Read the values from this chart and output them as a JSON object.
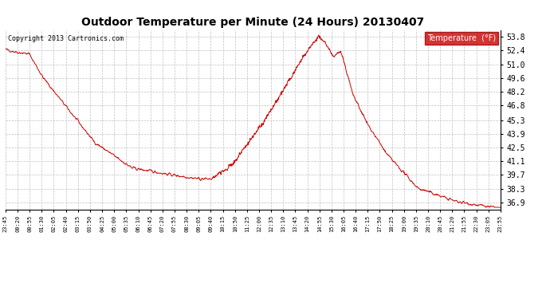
{
  "title": "Outdoor Temperature per Minute (24 Hours) 20130407",
  "copyright_text": "Copyright 2013 Cartronics.com",
  "legend_label": "Temperature  (°F)",
  "line_color": "#cc0000",
  "background_color": "#ffffff",
  "grid_color": "#c0c0c0",
  "ylabel_right_values": [
    36.9,
    38.3,
    39.7,
    41.1,
    42.5,
    43.9,
    45.3,
    46.8,
    48.2,
    49.6,
    51.0,
    52.4,
    53.8
  ],
  "x_tick_labels": [
    "23:45",
    "00:20",
    "00:55",
    "01:30",
    "02:05",
    "02:40",
    "03:15",
    "03:50",
    "04:25",
    "05:00",
    "05:35",
    "06:10",
    "06:45",
    "07:20",
    "07:55",
    "08:30",
    "09:05",
    "09:40",
    "10:15",
    "10:50",
    "11:25",
    "12:00",
    "12:35",
    "13:10",
    "13:45",
    "14:20",
    "14:55",
    "15:30",
    "16:05",
    "16:40",
    "17:15",
    "17:50",
    "18:25",
    "19:00",
    "19:35",
    "20:10",
    "20:45",
    "21:20",
    "21:55",
    "22:30",
    "23:05",
    "23:55"
  ],
  "ylim_min": 36.2,
  "ylim_max": 54.5,
  "figwidth": 6.9,
  "figheight": 3.75,
  "dpi": 100
}
